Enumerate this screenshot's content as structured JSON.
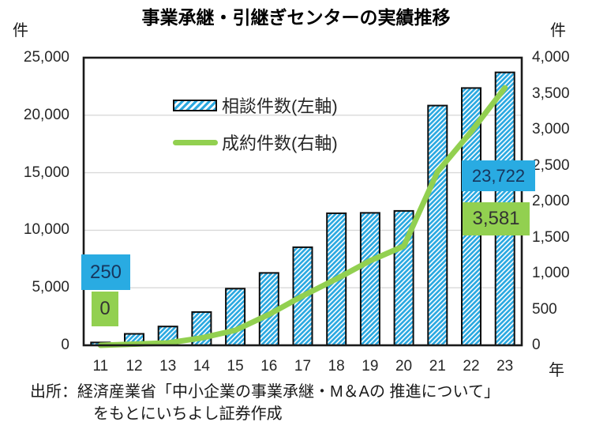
{
  "header": {
    "title": "事業承継・引継ぎセンターの実績推移",
    "left_axis_unit": "件",
    "right_axis_unit": "件",
    "x_axis_unit": "年"
  },
  "legend": {
    "items": [
      {
        "label": "相談件数(左軸)",
        "swatch": "hatched-bar"
      },
      {
        "label": "成約件数(右軸)",
        "swatch": "green-line"
      }
    ]
  },
  "chart_data": {
    "type": "combo-bar-line",
    "title": "事業承継・引継ぎセンターの実績推移",
    "categories": [
      "11",
      "12",
      "13",
      "14",
      "15",
      "16",
      "17",
      "18",
      "19",
      "20",
      "21",
      "22",
      "23"
    ],
    "x_axis_unit": "年",
    "series": [
      {
        "name": "相談件数(左軸)",
        "type": "bar",
        "axis": "left",
        "color": "#2CA9E1",
        "values": [
          250,
          994,
          1634,
          2894,
          4924,
          6292,
          8526,
          11477,
          11514,
          11686,
          20841,
          22361,
          23722
        ]
      },
      {
        "name": "成約件数(右軸)",
        "type": "line",
        "axis": "right",
        "color": "#92D050",
        "values": [
          0,
          17,
          33,
          102,
          209,
          430,
          687,
          923,
          1176,
          1379,
          2413,
          2972,
          3581
        ]
      }
    ],
    "left_axis": {
      "min": 0,
      "max": 25000,
      "step": 5000,
      "tick_labels": [
        "0",
        "5,000",
        "10,000",
        "15,000",
        "20,000",
        "25,000"
      ]
    },
    "right_axis": {
      "min": 0,
      "max": 4000,
      "step": 500,
      "tick_labels": [
        "0",
        "500",
        "1,000",
        "1,500",
        "2,000",
        "2,500",
        "3,000",
        "3,500",
        "4,000"
      ]
    },
    "grid": "horizontal",
    "legend_position": "inside-top-left"
  },
  "annotations": [
    {
      "id": "first-bar-label",
      "text": "250",
      "year": "11",
      "bg": "#29ABE2",
      "fg": "#17365D"
    },
    {
      "id": "first-line-label",
      "text": "0",
      "year": "11",
      "bg": "#92D050",
      "fg": "#333333"
    },
    {
      "id": "last-bar-label",
      "text": "23,722",
      "year": "23",
      "bg": "#29ABE2",
      "fg": "#17365D"
    },
    {
      "id": "last-line-label",
      "text": "3,581",
      "year": "23",
      "bg": "#92D050",
      "fg": "#333333"
    }
  ],
  "source": {
    "line1": "出所：経済産業省「中小企業の事業承継・M＆Aの 推進について」",
    "line2": "をもとにいちよし証券作成"
  }
}
